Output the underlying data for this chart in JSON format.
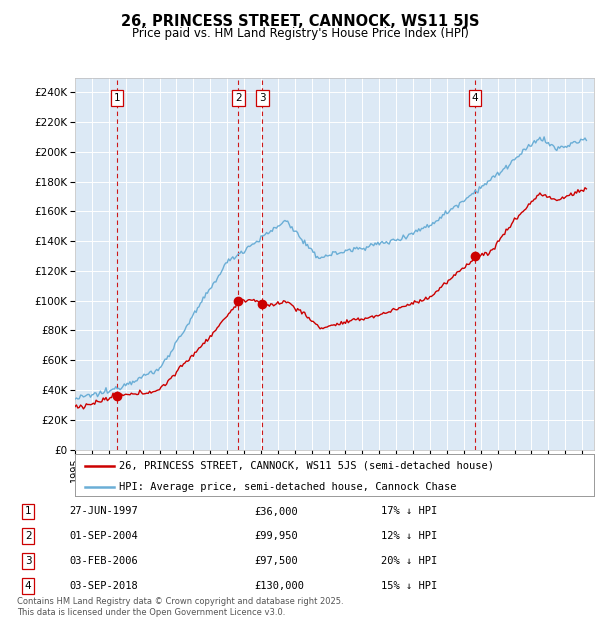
{
  "title": "26, PRINCESS STREET, CANNOCK, WS11 5JS",
  "subtitle": "Price paid vs. HM Land Registry's House Price Index (HPI)",
  "hpi_color": "#6baed6",
  "price_color": "#cc0000",
  "vline_color": "#cc0000",
  "background_color": "#dce9f5",
  "ylim": [
    0,
    250000
  ],
  "yticks": [
    0,
    20000,
    40000,
    60000,
    80000,
    100000,
    120000,
    140000,
    160000,
    180000,
    200000,
    220000,
    240000
  ],
  "ytick_labels": [
    "£0",
    "£20K",
    "£40K",
    "£60K",
    "£80K",
    "£100K",
    "£120K",
    "£140K",
    "£160K",
    "£180K",
    "£200K",
    "£220K",
    "£240K"
  ],
  "xlim_start": 1995.0,
  "xlim_end": 2025.7,
  "transactions": [
    {
      "num": 1,
      "date_str": "27-JUN-1997",
      "year": 1997.49,
      "price": 36000,
      "pct": "17%",
      "dir": "↓"
    },
    {
      "num": 2,
      "date_str": "01-SEP-2004",
      "year": 2004.67,
      "price": 99950,
      "pct": "12%",
      "dir": "↓"
    },
    {
      "num": 3,
      "date_str": "03-FEB-2006",
      "year": 2006.09,
      "price": 97500,
      "pct": "20%",
      "dir": "↓"
    },
    {
      "num": 4,
      "date_str": "03-SEP-2018",
      "year": 2018.67,
      "price": 130000,
      "pct": "15%",
      "dir": "↓"
    }
  ],
  "legend_label_price": "26, PRINCESS STREET, CANNOCK, WS11 5JS (semi-detached house)",
  "legend_label_hpi": "HPI: Average price, semi-detached house, Cannock Chase",
  "footer": "Contains HM Land Registry data © Crown copyright and database right 2025.\nThis data is licensed under the Open Government Licence v3.0."
}
